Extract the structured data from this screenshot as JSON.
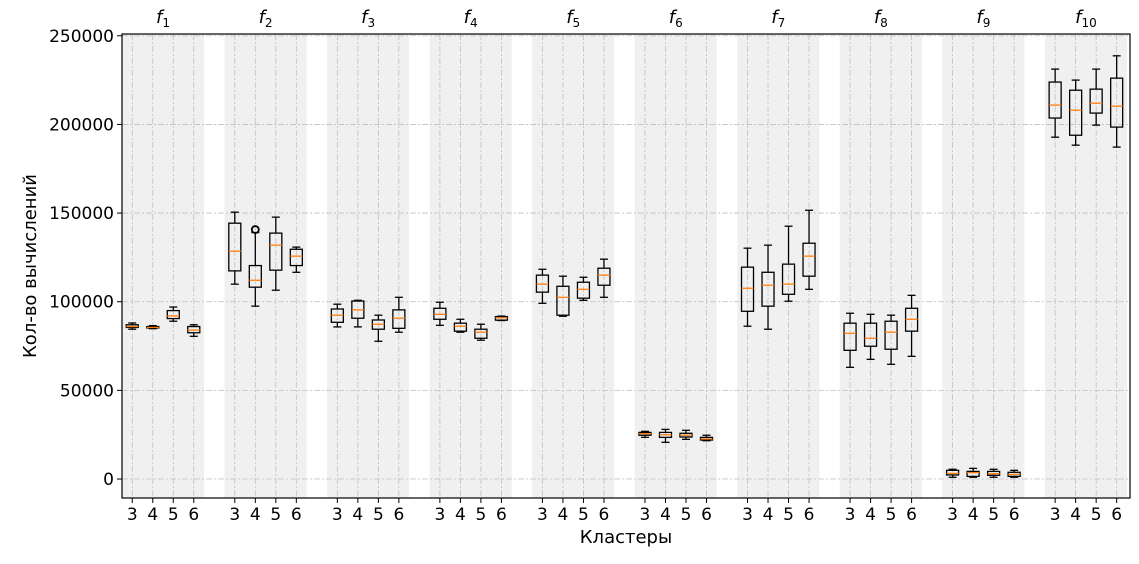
{
  "chart_data": {
    "type": "box",
    "xlabel": "Кластеры",
    "ylabel": "Кол-во вычислений",
    "ylim": [
      -10700,
      251000
    ],
    "yticks": [
      0,
      50000,
      100000,
      150000,
      200000,
      250000
    ],
    "ytick_labels": [
      "0",
      "50000",
      "100000",
      "150000",
      "200000",
      "250000"
    ],
    "grid": true,
    "cluster_labels": [
      "3",
      "4",
      "5",
      "6"
    ],
    "colors": {
      "band": "#f0f0f0",
      "box": "#000000",
      "median": "#ff7f0e",
      "grid": "#c0c0c0"
    },
    "groups": [
      {
        "title": "f",
        "sub": "1",
        "boxes": [
          {
            "low": 84500,
            "q1": 85500,
            "med": 86000,
            "q3": 87000,
            "high": 88000
          },
          {
            "low": 84800,
            "q1": 85200,
            "med": 85500,
            "q3": 86000,
            "high": 86500
          },
          {
            "low": 89000,
            "q1": 90500,
            "med": 92000,
            "q3": 95000,
            "high": 97000
          },
          {
            "low": 80500,
            "q1": 82500,
            "med": 84000,
            "q3": 86000,
            "high": 87000
          }
        ]
      },
      {
        "title": "f",
        "sub": "2",
        "boxes": [
          {
            "low": 109900,
            "q1": 117400,
            "med": 128500,
            "q3": 144300,
            "high": 150500
          },
          {
            "low": 97500,
            "q1": 108200,
            "med": 112100,
            "q3": 120400,
            "high": 139000,
            "outliers": [
              140700
            ]
          },
          {
            "low": 106500,
            "q1": 117800,
            "med": 131900,
            "q3": 138700,
            "high": 147700
          },
          {
            "low": 116600,
            "q1": 120400,
            "med": 125700,
            "q3": 129600,
            "high": 130800
          }
        ]
      },
      {
        "title": "f",
        "sub": "3",
        "boxes": [
          {
            "low": 85800,
            "q1": 88400,
            "med": 92400,
            "q3": 95900,
            "high": 98600
          },
          {
            "low": 85800,
            "q1": 90700,
            "med": 95400,
            "q3": 100400,
            "high": 100800
          },
          {
            "low": 77700,
            "q1": 84500,
            "med": 87300,
            "q3": 89700,
            "high": 92400
          },
          {
            "low": 82800,
            "q1": 85000,
            "med": 90700,
            "q3": 95400,
            "high": 102500
          }
        ]
      },
      {
        "title": "f",
        "sub": "4",
        "boxes": [
          {
            "low": 86700,
            "q1": 90100,
            "med": 92900,
            "q3": 96300,
            "high": 99700
          },
          {
            "low": 82800,
            "q1": 83400,
            "med": 86200,
            "q3": 87900,
            "high": 90100
          },
          {
            "low": 78300,
            "q1": 79400,
            "med": 82800,
            "q3": 84500,
            "high": 87300
          },
          {
            "low": 89400,
            "q1": 89600,
            "med": 90900,
            "q3": 91600,
            "high": 91900
          }
        ]
      },
      {
        "title": "f",
        "sub": "5",
        "boxes": [
          {
            "low": 99100,
            "q1": 105400,
            "med": 109900,
            "q3": 115000,
            "high": 118300
          },
          {
            "low": 91800,
            "q1": 92400,
            "med": 102500,
            "q3": 108700,
            "high": 114400
          },
          {
            "low": 100800,
            "q1": 102000,
            "med": 107000,
            "q3": 111000,
            "high": 113800
          },
          {
            "low": 102500,
            "q1": 109300,
            "med": 115000,
            "q3": 118900,
            "high": 124000
          }
        ]
      },
      {
        "title": "f",
        "sub": "6",
        "boxes": [
          {
            "low": 23500,
            "q1": 24700,
            "med": 25600,
            "q3": 26300,
            "high": 26900
          },
          {
            "low": 20700,
            "q1": 23500,
            "med": 25000,
            "q3": 26300,
            "high": 28000
          },
          {
            "low": 22400,
            "q1": 23700,
            "med": 24700,
            "q3": 25800,
            "high": 27500
          },
          {
            "low": 21600,
            "q1": 22000,
            "med": 22600,
            "q3": 23500,
            "high": 24700
          }
        ]
      },
      {
        "title": "f",
        "sub": "7",
        "boxes": [
          {
            "low": 86200,
            "q1": 94600,
            "med": 107600,
            "q3": 119500,
            "high": 130200
          },
          {
            "low": 84500,
            "q1": 97500,
            "med": 109300,
            "q3": 116600,
            "high": 131900
          },
          {
            "low": 100300,
            "q1": 104200,
            "med": 109900,
            "q3": 121200,
            "high": 142600
          },
          {
            "low": 107000,
            "q1": 114400,
            "med": 125700,
            "q3": 133000,
            "high": 151600
          }
        ]
      },
      {
        "title": "f",
        "sub": "8",
        "boxes": [
          {
            "low": 63000,
            "q1": 72600,
            "med": 82200,
            "q3": 87900,
            "high": 93500
          },
          {
            "low": 67500,
            "q1": 74900,
            "med": 79400,
            "q3": 87900,
            "high": 92900
          },
          {
            "low": 64700,
            "q1": 73200,
            "med": 82800,
            "q3": 89000,
            "high": 92400
          },
          {
            "low": 69200,
            "q1": 83400,
            "med": 90100,
            "q3": 96300,
            "high": 103600
          }
        ]
      },
      {
        "title": "f",
        "sub": "9",
        "boxes": [
          {
            "low": 1000,
            "q1": 2300,
            "med": 3200,
            "q3": 4900,
            "high": 5500
          },
          {
            "low": 1000,
            "q1": 1500,
            "med": 3600,
            "q3": 4300,
            "high": 6000
          },
          {
            "low": 1000,
            "q1": 2100,
            "med": 3000,
            "q3": 4300,
            "high": 5500
          },
          {
            "low": 1000,
            "q1": 1500,
            "med": 2600,
            "q3": 3800,
            "high": 4900
          }
        ]
      },
      {
        "title": "f",
        "sub": "10",
        "boxes": [
          {
            "low": 192800,
            "q1": 203600,
            "med": 210900,
            "q3": 223900,
            "high": 231200
          },
          {
            "low": 188300,
            "q1": 193900,
            "med": 208000,
            "q3": 219300,
            "high": 225000
          },
          {
            "low": 199600,
            "q1": 206400,
            "med": 212000,
            "q3": 219900,
            "high": 231200
          },
          {
            "low": 187200,
            "q1": 198500,
            "med": 210300,
            "q3": 226100,
            "high": 238700
          }
        ]
      }
    ]
  }
}
